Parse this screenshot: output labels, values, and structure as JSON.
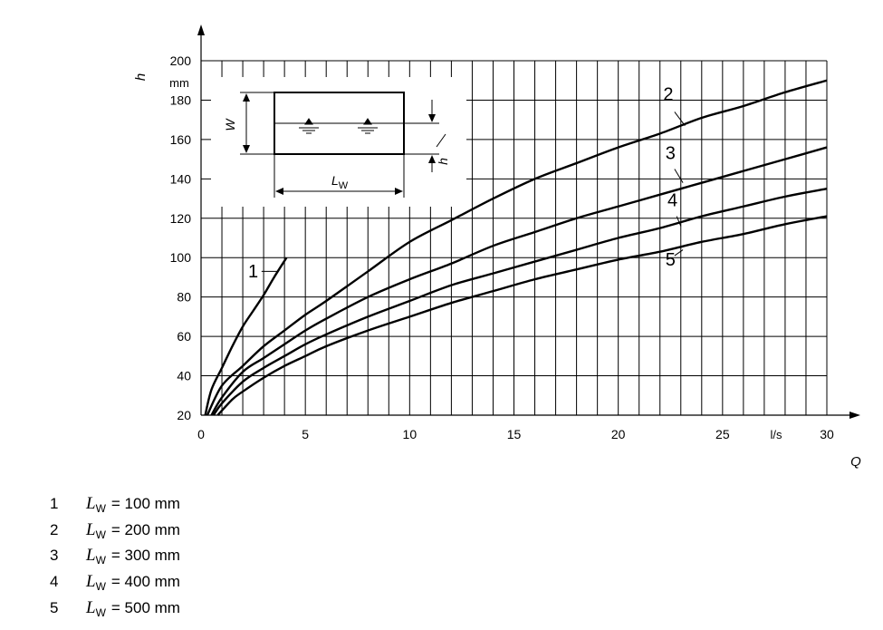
{
  "chart_data": {
    "type": "line",
    "xlabel": "Q",
    "x_unit": "l/s",
    "ylabel": "h",
    "y_unit": "mm",
    "xlim": [
      0,
      30
    ],
    "ylim": [
      20,
      200
    ],
    "x_ticks": [
      0,
      5,
      10,
      15,
      20,
      25,
      30
    ],
    "y_ticks": [
      20,
      40,
      60,
      80,
      100,
      120,
      140,
      160,
      180,
      200
    ],
    "grid": true,
    "series": [
      {
        "label": "1",
        "x": [
          0.2,
          0.5,
          1.0,
          1.5,
          2.0,
          2.5,
          3.0,
          3.5,
          4.1
        ],
        "y": [
          20,
          33,
          44,
          55,
          65,
          73,
          81,
          90,
          100
        ]
      },
      {
        "label": "2",
        "x": [
          0.3,
          1.0,
          2.0,
          3.0,
          4.0,
          5.0,
          6.0,
          8.0,
          10.0,
          12.0,
          14.0,
          16.0,
          18.0,
          20.0,
          22.0,
          24.0,
          26.0,
          28.0,
          30.0
        ],
        "y": [
          20,
          35,
          45,
          55,
          63,
          71,
          78,
          93,
          108,
          119,
          130,
          140,
          148,
          156,
          163,
          171,
          177,
          184,
          190
        ]
      },
      {
        "label": "3",
        "x": [
          0.5,
          1.0,
          2.0,
          3.0,
          4.0,
          5.0,
          6.0,
          8.0,
          10.0,
          12.0,
          14.0,
          16.0,
          18.0,
          20.0,
          22.0,
          24.0,
          26.0,
          28.0,
          30.0
        ],
        "y": [
          20,
          29,
          42,
          49,
          56,
          63,
          69,
          80,
          89,
          97,
          106,
          113,
          120,
          126,
          132,
          138,
          144,
          150,
          156
        ]
      },
      {
        "label": "4",
        "x": [
          0.6,
          1.0,
          2.0,
          3.0,
          4.0,
          5.0,
          6.0,
          8.0,
          10.0,
          12.0,
          14.0,
          16.0,
          18.0,
          20.0,
          22.0,
          24.0,
          26.0,
          28.0,
          30.0
        ],
        "y": [
          20,
          26,
          37,
          44,
          50,
          56,
          61,
          70,
          78,
          86,
          92,
          98,
          104,
          110,
          115,
          121,
          126,
          131,
          135
        ]
      },
      {
        "label": "5",
        "x": [
          0.8,
          1.5,
          2.0,
          3.0,
          4.0,
          5.0,
          6.0,
          8.0,
          10.0,
          12.0,
          14.0,
          16.0,
          18.0,
          20.0,
          22.0,
          24.0,
          26.0,
          28.0,
          30.0
        ],
        "y": [
          20,
          28,
          32,
          39,
          45,
          50,
          55,
          63,
          70,
          77,
          83,
          89,
          94,
          99,
          103,
          108,
          112,
          117,
          121
        ]
      }
    ],
    "annotations": [
      {
        "text": "1",
        "x": 2.5,
        "y": 90
      },
      {
        "text": "2",
        "x": 22.4,
        "y": 180
      },
      {
        "text": "3",
        "x": 22.5,
        "y": 150
      },
      {
        "text": "4",
        "x": 22.6,
        "y": 126
      },
      {
        "text": "5",
        "x": 22.5,
        "y": 96
      }
    ]
  },
  "inset": {
    "w_label": "W",
    "h_label": "h",
    "lw_label": "L",
    "lw_sub": "W"
  },
  "legend": [
    {
      "num": "1",
      "symbol": "L",
      "sub": "W",
      "text": "= 100 mm"
    },
    {
      "num": "2",
      "symbol": "L",
      "sub": "W",
      "text": "= 200 mm"
    },
    {
      "num": "3",
      "symbol": "L",
      "sub": "W",
      "text": "= 300 mm"
    },
    {
      "num": "4",
      "symbol": "L",
      "sub": "W",
      "text": "= 400 mm"
    },
    {
      "num": "5",
      "symbol": "L",
      "sub": "W",
      "text": "= 500 mm"
    }
  ]
}
